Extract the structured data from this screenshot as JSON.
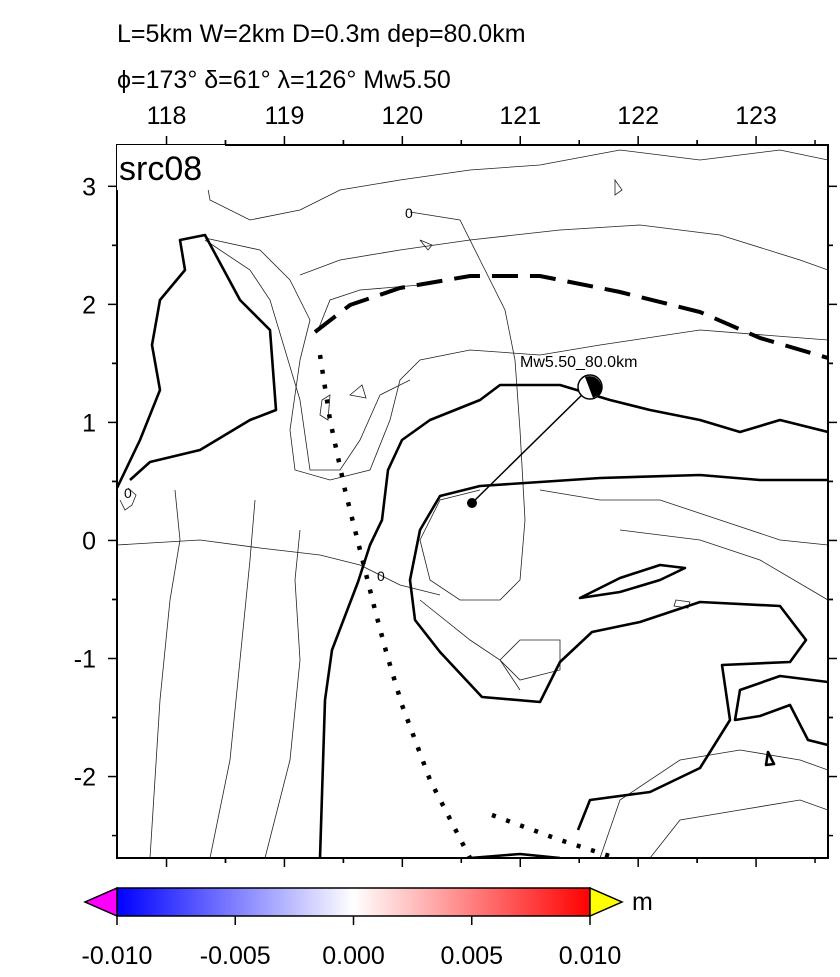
{
  "header": {
    "line1": "L=5km W=2km D=0.3m dep=80.0km",
    "line2": "ϕ=173° δ=61° λ=126° Mw5.50"
  },
  "map": {
    "label": "src08",
    "source_label": "Mw5.50_80.0km",
    "contour_labels": [
      "0",
      "0",
      "0"
    ],
    "xlim": [
      117.58,
      123.61
    ],
    "xticks": [
      118,
      119,
      120,
      121,
      122,
      123
    ],
    "ylim": [
      -2.69,
      3.35
    ],
    "yticks": [
      -2,
      -1,
      0,
      1,
      2,
      3
    ]
  },
  "colorbar": {
    "unit": "m",
    "ticks": [
      {
        "value": -0.01,
        "label": "-0.010"
      },
      {
        "value": -0.005,
        "label": "-0.005"
      },
      {
        "value": 0,
        "label": "0.000"
      },
      {
        "value": 0.005,
        "label": "0.005"
      },
      {
        "value": 0.01,
        "label": "0.010"
      }
    ]
  }
}
